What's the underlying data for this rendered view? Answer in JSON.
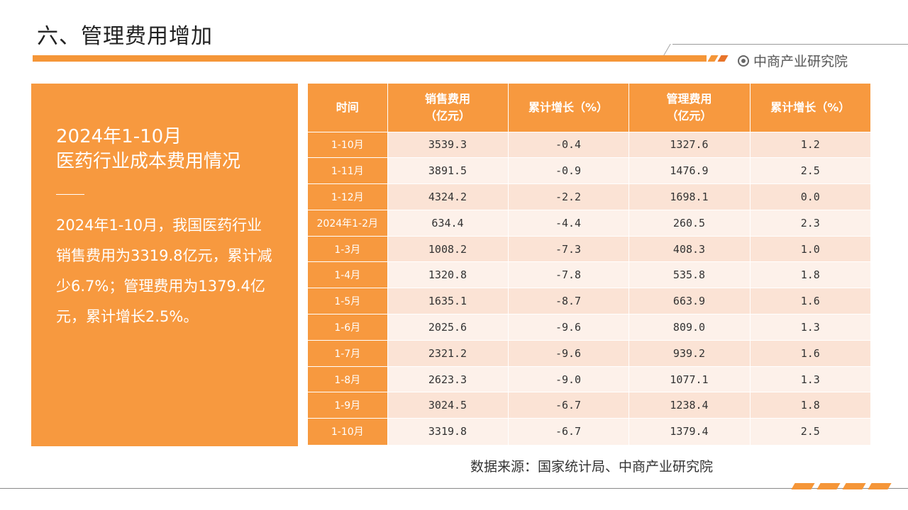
{
  "page": {
    "title": "六、管理费用增加",
    "brand": "中商产业研究院",
    "brand_icon": "target-icon",
    "accent_color": "#f7993f"
  },
  "summary": {
    "heading": "2024年1-10月",
    "subheading": "医药行业成本费用情况",
    "body": "2024年1-10月，我国医药行业销售费用为3319.8亿元，累计减少6.7%；管理费用为1379.4亿元，累计增长2.5%。"
  },
  "table": {
    "headers": [
      {
        "line1": "时间",
        "line2": ""
      },
      {
        "line1": "销售费用",
        "line2": "（亿元）"
      },
      {
        "line1": "累计增长（%）",
        "line2": ""
      },
      {
        "line1": "管理费用",
        "line2": "（亿元）"
      },
      {
        "line1": "累计增长（%）",
        "line2": ""
      }
    ],
    "rows": [
      {
        "time": "1-10月",
        "sales": "3539.3",
        "sales_growth": "-0.4",
        "admin": "1327.6",
        "admin_growth": "1.2"
      },
      {
        "time": "1-11月",
        "sales": "3891.5",
        "sales_growth": "-0.9",
        "admin": "1476.9",
        "admin_growth": "2.5"
      },
      {
        "time": "1-12月",
        "sales": "4324.2",
        "sales_growth": "-2.2",
        "admin": "1698.1",
        "admin_growth": "0.0"
      },
      {
        "time": "2024年1-2月",
        "sales": "634.4",
        "sales_growth": "-4.4",
        "admin": "260.5",
        "admin_growth": "2.3"
      },
      {
        "time": "1-3月",
        "sales": "1008.2",
        "sales_growth": "-7.3",
        "admin": "408.3",
        "admin_growth": "1.0"
      },
      {
        "time": "1-4月",
        "sales": "1320.8",
        "sales_growth": "-7.8",
        "admin": "535.8",
        "admin_growth": "1.8"
      },
      {
        "time": "1-5月",
        "sales": "1635.1",
        "sales_growth": "-8.7",
        "admin": "663.9",
        "admin_growth": "1.6"
      },
      {
        "time": "1-6月",
        "sales": "2025.6",
        "sales_growth": "-9.6",
        "admin": "809.0",
        "admin_growth": "1.3"
      },
      {
        "time": "1-7月",
        "sales": "2321.2",
        "sales_growth": "-9.6",
        "admin": "939.2",
        "admin_growth": "1.6"
      },
      {
        "time": "1-8月",
        "sales": "2623.3",
        "sales_growth": "-9.0",
        "admin": "1077.1",
        "admin_growth": "1.3"
      },
      {
        "time": "1-9月",
        "sales": "3024.5",
        "sales_growth": "-6.7",
        "admin": "1238.4",
        "admin_growth": "1.8"
      },
      {
        "time": "1-10月",
        "sales": "3319.8",
        "sales_growth": "-6.7",
        "admin": "1379.4",
        "admin_growth": "2.5"
      }
    ]
  },
  "source": "数据来源：国家统计局、中商产业研究院"
}
